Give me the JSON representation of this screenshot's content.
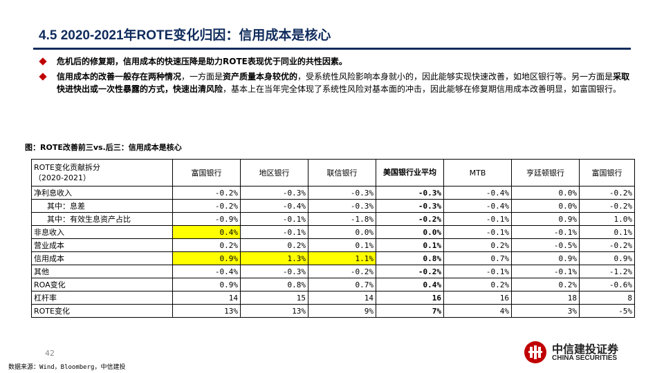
{
  "header": {
    "title": "4.5 2020-2021年ROTE变化归因：信用成本是核心"
  },
  "bullets": [
    {
      "segments": [
        {
          "text": "危机后的修复期，信用成本的快速压降是助力ROTE表现优于同业的共性因素。",
          "bold": true
        }
      ]
    },
    {
      "segments": [
        {
          "text": "信用成本的改善一般存在两种情况",
          "bold": true
        },
        {
          "text": "，一方面是",
          "bold": false
        },
        {
          "text": "资产质量本身较优的",
          "bold": true
        },
        {
          "text": "，受系统性风险影响本身就小的，因此能够实现快速改善，如地区银行等。另一方面是",
          "bold": false
        },
        {
          "text": "采取快进快出或一次性暴露的方式，快速出清风险",
          "bold": true
        },
        {
          "text": "，基本上在当年完全体现了系统性风险对基本面的冲击，因此能够在修复期信用成本改善明显，如富国银行。",
          "bold": false
        }
      ]
    }
  ],
  "figure": {
    "caption": "图：ROTE改善前三vs.后三：信用成本是核心"
  },
  "table": {
    "header_label_line1": "ROTE变化贡献拆分",
    "header_label_line2": "（2020-2021）",
    "columns": [
      "富国银行",
      "地区银行",
      "联信银行",
      "美国银行业平均",
      "MTB",
      "亨廷顿银行",
      "富国银行"
    ],
    "rows": [
      {
        "label": "净利息收入",
        "indent": false,
        "values": [
          "-0.2%",
          "-0.3%",
          "-0.3%",
          "-0.3%",
          "-0.4%",
          "0.0%",
          "-0.2%"
        ],
        "highlight": []
      },
      {
        "label": "其中：息差",
        "indent": true,
        "values": [
          "-0.2%",
          "-0.4%",
          "-0.3%",
          "-0.3%",
          "-0.4%",
          "0.0%",
          "-0.2%"
        ],
        "highlight": []
      },
      {
        "label": "其中：有效生息资产占比",
        "indent": true,
        "values": [
          "-0.9%",
          "-0.1%",
          "-1.8%",
          "-0.2%",
          "-0.1%",
          "0.9%",
          "1.0%"
        ],
        "highlight": []
      },
      {
        "label": "非息收入",
        "indent": false,
        "values": [
          "0.4%",
          "-0.1%",
          "0.0%",
          "0.0%",
          "-0.1%",
          "-0.1%",
          "0.1%"
        ],
        "highlight": [
          0
        ]
      },
      {
        "label": "营业成本",
        "indent": false,
        "values": [
          "0.2%",
          "0.2%",
          "0.1%",
          "0.1%",
          "0.2%",
          "-0.5%",
          "-0.2%"
        ],
        "highlight": []
      },
      {
        "label": "信用成本",
        "indent": false,
        "values": [
          "0.9%",
          "1.3%",
          "1.1%",
          "0.8%",
          "0.7%",
          "0.9%",
          "0.9%"
        ],
        "highlight": [
          0,
          1,
          2
        ]
      },
      {
        "label": "其他",
        "indent": false,
        "values": [
          "-0.4%",
          "-0.3%",
          "-0.2%",
          "-0.2%",
          "-0.1%",
          "-0.1%",
          "-1.2%"
        ],
        "highlight": []
      },
      {
        "label": "ROA变化",
        "indent": false,
        "values": [
          "0.9%",
          "0.8%",
          "0.7%",
          "0.4%",
          "0.2%",
          "0.2%",
          "-0.6%"
        ],
        "highlight": []
      },
      {
        "label": "杠杆率",
        "indent": false,
        "values": [
          "14",
          "15",
          "14",
          "16",
          "16",
          "18",
          "8"
        ],
        "highlight": []
      },
      {
        "label": "ROTE变化",
        "indent": false,
        "values": [
          "13%",
          "13%",
          "9%",
          "7%",
          "4%",
          "3%",
          "-5%"
        ],
        "highlight": []
      }
    ],
    "bold_column": 3
  },
  "footer": {
    "page_number": "42",
    "source": "数据来源：Wind，Bloomberg，中信建投"
  },
  "logo": {
    "name_cn": "中信建投证券",
    "name_en": "CHINA SECURITIES",
    "color": "#c00000"
  },
  "colors": {
    "title": "#0f2b5c",
    "bullet": "#c00000",
    "highlight": "#ffff00"
  }
}
